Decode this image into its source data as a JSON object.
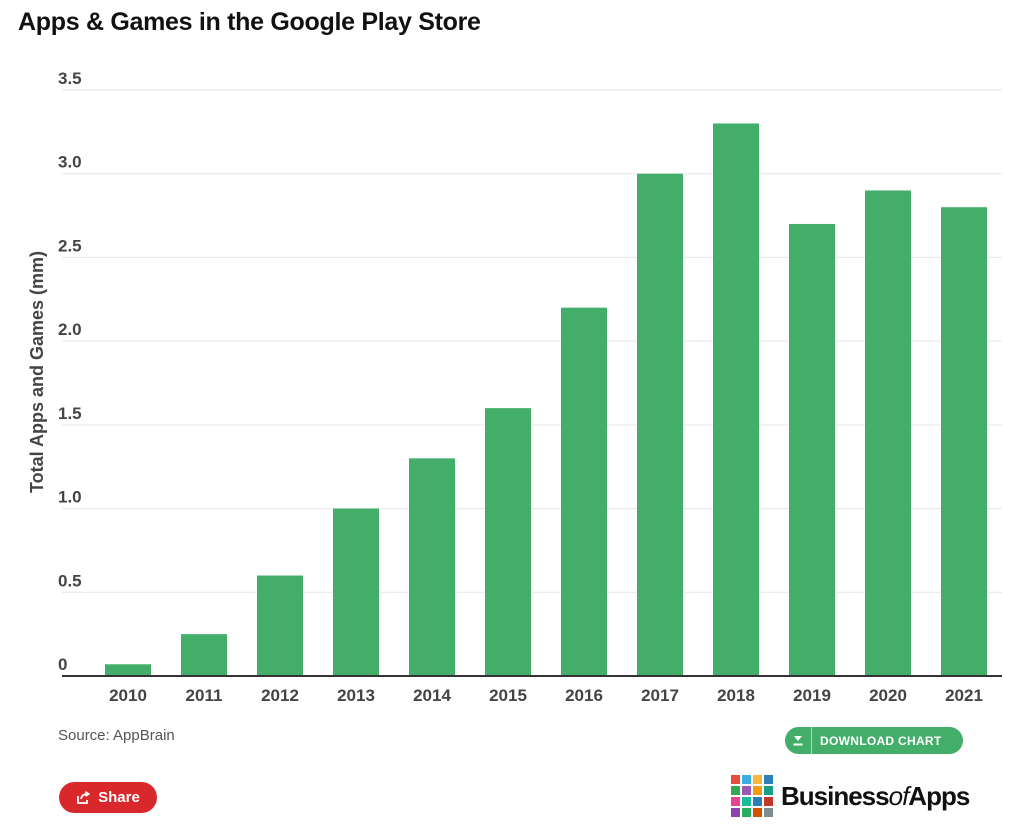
{
  "title": "Apps & Games in the Google Play Store",
  "source": "Source: AppBrain",
  "download_label": "DOWNLOAD CHART",
  "share_label": "Share",
  "brand": {
    "prefix": "Business",
    "of": "of",
    "suffix": "Apps"
  },
  "colors": {
    "bar": "#43ad6a",
    "share": "#d9282b",
    "grid": "#e6e6e6",
    "axis": "#333333"
  },
  "brand_colors": [
    "#e84c3d",
    "#3aaede",
    "#f5b53f",
    "#2c7fb8",
    "#34a853",
    "#9b59b6",
    "#f39c12",
    "#16a085",
    "#e84393",
    "#1abc9c",
    "#2980b9",
    "#c0392b",
    "#8e44ad",
    "#27ae60",
    "#d35400",
    "#7f8c8d"
  ],
  "icons": {
    "download": "download-icon",
    "share": "share-icon"
  },
  "chart_data": {
    "type": "bar",
    "title": "Apps & Games in the Google Play Store",
    "xlabel": "",
    "ylabel": "Total Apps and Games (mm)",
    "categories": [
      "2010",
      "2011",
      "2012",
      "2013",
      "2014",
      "2015",
      "2016",
      "2017",
      "2018",
      "2019",
      "2020",
      "2021"
    ],
    "values": [
      0.07,
      0.25,
      0.6,
      1.0,
      1.3,
      1.6,
      2.2,
      3.0,
      3.3,
      2.7,
      2.9,
      2.8
    ],
    "ylim": [
      0,
      3.5
    ],
    "yticks": [
      0,
      0.5,
      1.0,
      1.5,
      2.0,
      2.5,
      3.0,
      3.5
    ],
    "ytick_labels": [
      "0",
      "0.5",
      "1.0",
      "1.5",
      "2.0",
      "2.5",
      "3.0",
      "3.5"
    ],
    "grid": true,
    "legend": "none"
  }
}
